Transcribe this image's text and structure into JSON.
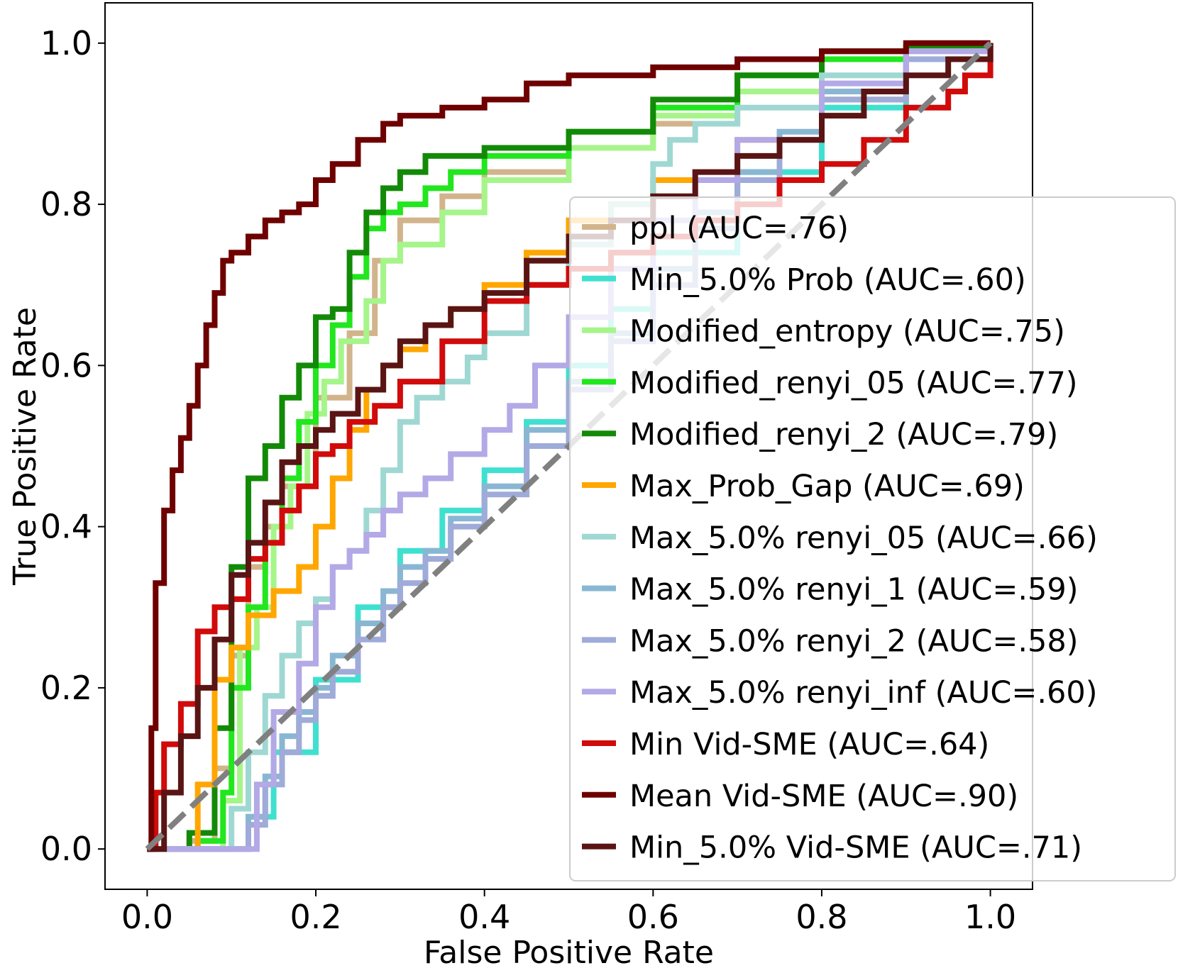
{
  "chart_data": {
    "type": "line",
    "title": "",
    "xlabel": "False Positive Rate",
    "ylabel": "True Positive Rate",
    "xlim": [
      -0.05,
      1.05
    ],
    "ylim": [
      -0.05,
      1.05
    ],
    "xticks": [
      "0.0",
      "0.2",
      "0.4",
      "0.6",
      "0.8",
      "1.0"
    ],
    "yticks": [
      "0.0",
      "0.2",
      "0.4",
      "0.6",
      "0.8",
      "1.0"
    ],
    "grid": false,
    "legend_position": "center-right",
    "diagonal": {
      "x": [
        0,
        1
      ],
      "y": [
        0,
        1
      ],
      "color": "#808080",
      "style": "dashed"
    },
    "series": [
      {
        "name": "ppl (AUC=.76)",
        "color": "#d2b48c",
        "x": [
          0,
          0.05,
          0.08,
          0.1,
          0.12,
          0.14,
          0.16,
          0.2,
          0.24,
          0.27,
          0.3,
          0.35,
          0.4,
          0.5,
          0.6,
          0.7,
          0.8,
          0.9,
          1.0
        ],
        "y": [
          0,
          0.01,
          0.1,
          0.24,
          0.35,
          0.4,
          0.45,
          0.56,
          0.64,
          0.73,
          0.78,
          0.81,
          0.84,
          0.87,
          0.9,
          0.94,
          0.98,
          0.99,
          1.0
        ]
      },
      {
        "name": "Min_5.0% Prob (AUC=.60)",
        "color": "#40e0d0",
        "x": [
          0,
          0.1,
          0.12,
          0.15,
          0.2,
          0.25,
          0.3,
          0.35,
          0.4,
          0.45,
          0.5,
          0.55,
          0.6,
          0.7,
          0.8,
          0.9,
          1.0
        ],
        "y": [
          0,
          0.0,
          0.04,
          0.12,
          0.21,
          0.3,
          0.37,
          0.42,
          0.47,
          0.53,
          0.6,
          0.67,
          0.74,
          0.84,
          0.92,
          0.98,
          1.0
        ]
      },
      {
        "name": "Modified_entropy (AUC=.75)",
        "color": "#a6f58a",
        "x": [
          0,
          0.06,
          0.09,
          0.11,
          0.13,
          0.15,
          0.17,
          0.19,
          0.21,
          0.23,
          0.26,
          0.28,
          0.3,
          0.35,
          0.4,
          0.5,
          0.6,
          0.7,
          0.8,
          0.9,
          1.0
        ],
        "y": [
          0,
          0.0,
          0.06,
          0.25,
          0.3,
          0.4,
          0.45,
          0.54,
          0.58,
          0.63,
          0.68,
          0.73,
          0.75,
          0.79,
          0.83,
          0.87,
          0.91,
          0.94,
          0.98,
          0.995,
          1.0
        ]
      },
      {
        "name": "Modified_renyi_05 (AUC=.77)",
        "color": "#22e61e",
        "x": [
          0,
          0.06,
          0.09,
          0.1,
          0.12,
          0.14,
          0.16,
          0.18,
          0.2,
          0.22,
          0.24,
          0.26,
          0.28,
          0.3,
          0.33,
          0.36,
          0.4,
          0.5,
          0.6,
          0.7,
          0.8,
          0.9,
          1.0
        ],
        "y": [
          0,
          0.01,
          0.07,
          0.2,
          0.3,
          0.38,
          0.46,
          0.53,
          0.6,
          0.65,
          0.71,
          0.77,
          0.79,
          0.8,
          0.82,
          0.84,
          0.86,
          0.89,
          0.92,
          0.96,
          0.98,
          0.995,
          1.0
        ]
      },
      {
        "name": "Modified_renyi_2 (AUC=.79)",
        "color": "#138a07",
        "x": [
          0,
          0.05,
          0.08,
          0.1,
          0.12,
          0.14,
          0.16,
          0.18,
          0.2,
          0.22,
          0.24,
          0.26,
          0.28,
          0.3,
          0.33,
          0.36,
          0.4,
          0.5,
          0.6,
          0.7,
          0.8,
          0.9,
          1.0
        ],
        "y": [
          0,
          0.02,
          0.15,
          0.35,
          0.46,
          0.5,
          0.56,
          0.6,
          0.66,
          0.67,
          0.74,
          0.79,
          0.82,
          0.84,
          0.86,
          0.86,
          0.87,
          0.89,
          0.93,
          0.96,
          0.99,
          0.995,
          1.0
        ]
      },
      {
        "name": "Max_Prob_Gap (AUC=.69)",
        "color": "#ffa600",
        "x": [
          0,
          0.03,
          0.06,
          0.08,
          0.1,
          0.12,
          0.15,
          0.18,
          0.2,
          0.22,
          0.24,
          0.26,
          0.28,
          0.3,
          0.33,
          0.36,
          0.4,
          0.45,
          0.5,
          0.55,
          0.6,
          0.7,
          0.8,
          0.9,
          1.0
        ],
        "y": [
          0,
          0.0,
          0.08,
          0.21,
          0.25,
          0.29,
          0.32,
          0.35,
          0.4,
          0.46,
          0.52,
          0.57,
          0.6,
          0.62,
          0.65,
          0.67,
          0.7,
          0.74,
          0.78,
          0.8,
          0.83,
          0.88,
          0.93,
          0.98,
          1.0
        ]
      },
      {
        "name": "Max_5.0% renyi_05 (AUC=.66)",
        "color": "#9fd8d2",
        "x": [
          0,
          0.08,
          0.1,
          0.12,
          0.14,
          0.16,
          0.18,
          0.2,
          0.22,
          0.24,
          0.26,
          0.28,
          0.3,
          0.32,
          0.35,
          0.38,
          0.4,
          0.45,
          0.5,
          0.55,
          0.6,
          0.62,
          0.65,
          0.7,
          0.8,
          0.9,
          1.0
        ],
        "y": [
          0,
          0.0,
          0.05,
          0.12,
          0.19,
          0.24,
          0.28,
          0.31,
          0.35,
          0.37,
          0.42,
          0.47,
          0.53,
          0.56,
          0.58,
          0.61,
          0.64,
          0.7,
          0.75,
          0.8,
          0.85,
          0.88,
          0.9,
          0.92,
          0.96,
          0.99,
          1.0
        ]
      },
      {
        "name": "Max_5.0% renyi_1 (AUC=.59)",
        "color": "#89b7d3",
        "x": [
          0,
          0.1,
          0.12,
          0.14,
          0.16,
          0.18,
          0.2,
          0.22,
          0.25,
          0.28,
          0.3,
          0.33,
          0.36,
          0.4,
          0.45,
          0.5,
          0.55,
          0.6,
          0.65,
          0.7,
          0.75,
          0.8,
          0.9,
          1.0
        ],
        "y": [
          0,
          0.0,
          0.04,
          0.09,
          0.14,
          0.17,
          0.2,
          0.24,
          0.28,
          0.32,
          0.35,
          0.37,
          0.41,
          0.45,
          0.52,
          0.58,
          0.64,
          0.72,
          0.79,
          0.84,
          0.89,
          0.94,
          0.98,
          1.0
        ]
      },
      {
        "name": "Max_5.0% renyi_2 (AUC=.58)",
        "color": "#9fabd8",
        "x": [
          0,
          0.1,
          0.12,
          0.14,
          0.16,
          0.18,
          0.2,
          0.22,
          0.25,
          0.28,
          0.3,
          0.33,
          0.36,
          0.4,
          0.45,
          0.5,
          0.55,
          0.6,
          0.65,
          0.7,
          0.75,
          0.8,
          0.9,
          1.0
        ],
        "y": [
          0,
          0.0,
          0.03,
          0.08,
          0.12,
          0.16,
          0.19,
          0.22,
          0.26,
          0.3,
          0.33,
          0.36,
          0.4,
          0.44,
          0.5,
          0.57,
          0.63,
          0.7,
          0.77,
          0.83,
          0.88,
          0.93,
          0.98,
          1.0
        ]
      },
      {
        "name": "Max_5.0% renyi_inf (AUC=.60)",
        "color": "#b3a9e6",
        "x": [
          0,
          0.11,
          0.13,
          0.15,
          0.18,
          0.2,
          0.22,
          0.24,
          0.26,
          0.28,
          0.3,
          0.33,
          0.36,
          0.4,
          0.43,
          0.46,
          0.5,
          0.55,
          0.6,
          0.65,
          0.7,
          0.8,
          0.9,
          1.0
        ],
        "y": [
          0,
          0.0,
          0.08,
          0.17,
          0.23,
          0.3,
          0.35,
          0.37,
          0.39,
          0.42,
          0.44,
          0.46,
          0.49,
          0.52,
          0.55,
          0.6,
          0.66,
          0.72,
          0.78,
          0.83,
          0.88,
          0.95,
          0.99,
          1.0
        ]
      },
      {
        "name": "Min Vid-SME (AUC=.64)",
        "color": "#d10a0a",
        "x": [
          0,
          0.01,
          0.02,
          0.04,
          0.06,
          0.08,
          0.1,
          0.12,
          0.14,
          0.16,
          0.18,
          0.2,
          0.22,
          0.24,
          0.27,
          0.3,
          0.35,
          0.4,
          0.45,
          0.5,
          0.55,
          0.6,
          0.65,
          0.7,
          0.75,
          0.8,
          0.85,
          0.9,
          0.95,
          0.97,
          0.98,
          1.0
        ],
        "y": [
          0,
          0.07,
          0.13,
          0.18,
          0.27,
          0.3,
          0.31,
          0.36,
          0.38,
          0.42,
          0.45,
          0.49,
          0.5,
          0.53,
          0.55,
          0.58,
          0.63,
          0.68,
          0.7,
          0.72,
          0.74,
          0.76,
          0.78,
          0.8,
          0.83,
          0.85,
          0.88,
          0.92,
          0.94,
          0.96,
          0.96,
          1.0
        ]
      },
      {
        "name": "Mean Vid-SME (AUC=.90)",
        "color": "#6e0000",
        "x": [
          0,
          0.005,
          0.01,
          0.02,
          0.03,
          0.04,
          0.05,
          0.06,
          0.07,
          0.08,
          0.09,
          0.1,
          0.12,
          0.14,
          0.16,
          0.18,
          0.2,
          0.22,
          0.25,
          0.28,
          0.3,
          0.35,
          0.4,
          0.45,
          0.5,
          0.6,
          0.7,
          0.8,
          0.9,
          1.0
        ],
        "y": [
          0,
          0.15,
          0.33,
          0.42,
          0.47,
          0.51,
          0.55,
          0.6,
          0.65,
          0.69,
          0.73,
          0.74,
          0.76,
          0.78,
          0.79,
          0.8,
          0.83,
          0.85,
          0.88,
          0.9,
          0.91,
          0.92,
          0.93,
          0.95,
          0.96,
          0.97,
          0.98,
          0.99,
          1.0,
          1.0
        ]
      },
      {
        "name": "Min_5.0% Vid-SME (AUC=.71)",
        "color": "#5a1414",
        "x": [
          0,
          0.02,
          0.04,
          0.06,
          0.08,
          0.1,
          0.12,
          0.14,
          0.16,
          0.18,
          0.2,
          0.22,
          0.25,
          0.28,
          0.3,
          0.33,
          0.36,
          0.4,
          0.45,
          0.5,
          0.55,
          0.6,
          0.65,
          0.7,
          0.75,
          0.8,
          0.85,
          0.9,
          0.95,
          1.0
        ],
        "y": [
          0,
          0.07,
          0.14,
          0.2,
          0.26,
          0.34,
          0.38,
          0.43,
          0.48,
          0.5,
          0.52,
          0.54,
          0.57,
          0.6,
          0.63,
          0.65,
          0.67,
          0.69,
          0.73,
          0.76,
          0.78,
          0.81,
          0.84,
          0.86,
          0.88,
          0.91,
          0.94,
          0.96,
          0.98,
          1.0
        ]
      }
    ]
  }
}
